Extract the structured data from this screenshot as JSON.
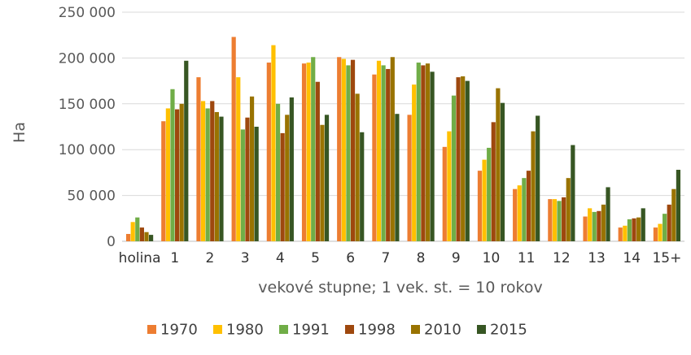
{
  "chart_data": {
    "type": "bar",
    "title": "",
    "xlabel": "vekové stupne; 1 vek. st. = 10 rokov",
    "ylabel": "Ha",
    "ylim": [
      0,
      250000
    ],
    "yticks": [
      0,
      50000,
      100000,
      150000,
      200000,
      250000
    ],
    "ytick_labels": [
      "0",
      "50 000",
      "100 000",
      "150 000",
      "200 000",
      "250 000"
    ],
    "grid": true,
    "legend_position": "bottom",
    "categories": [
      "holina",
      "1",
      "2",
      "3",
      "4",
      "5",
      "6",
      "7",
      "8",
      "9",
      "10",
      "11",
      "12",
      "13",
      "14",
      "15+"
    ],
    "series": [
      {
        "name": "1970",
        "color": "#ED7D31",
        "values": [
          8000,
          131000,
          179000,
          223000,
          195000,
          194000,
          201000,
          182000,
          138000,
          103000,
          77000,
          57000,
          46000,
          27000,
          15000,
          15000
        ]
      },
      {
        "name": "1980",
        "color": "#FFC000",
        "values": [
          21000,
          145000,
          153000,
          179000,
          214000,
          195000,
          199000,
          197000,
          171000,
          120000,
          89000,
          61000,
          46000,
          36000,
          17000,
          19000
        ]
      },
      {
        "name": "1991",
        "color": "#70AD47",
        "values": [
          26000,
          166000,
          145000,
          122000,
          150000,
          201000,
          192000,
          192000,
          195000,
          159000,
          102000,
          69000,
          44000,
          32000,
          24000,
          30000
        ]
      },
      {
        "name": "1998",
        "color": "#9E480E",
        "values": [
          15000,
          144000,
          153000,
          135000,
          118000,
          174000,
          198000,
          188000,
          192000,
          179000,
          130000,
          77000,
          48000,
          33000,
          25000,
          40000
        ]
      },
      {
        "name": "2010",
        "color": "#997300",
        "values": [
          10000,
          150000,
          141000,
          158000,
          138000,
          127000,
          161000,
          201000,
          194000,
          180000,
          167000,
          120000,
          69000,
          40000,
          26000,
          57000
        ]
      },
      {
        "name": "2015",
        "color": "#375623",
        "values": [
          7000,
          197000,
          136000,
          125000,
          157000,
          138000,
          119000,
          139000,
          185000,
          175000,
          151000,
          137000,
          105000,
          59000,
          36000,
          78000
        ]
      }
    ]
  }
}
